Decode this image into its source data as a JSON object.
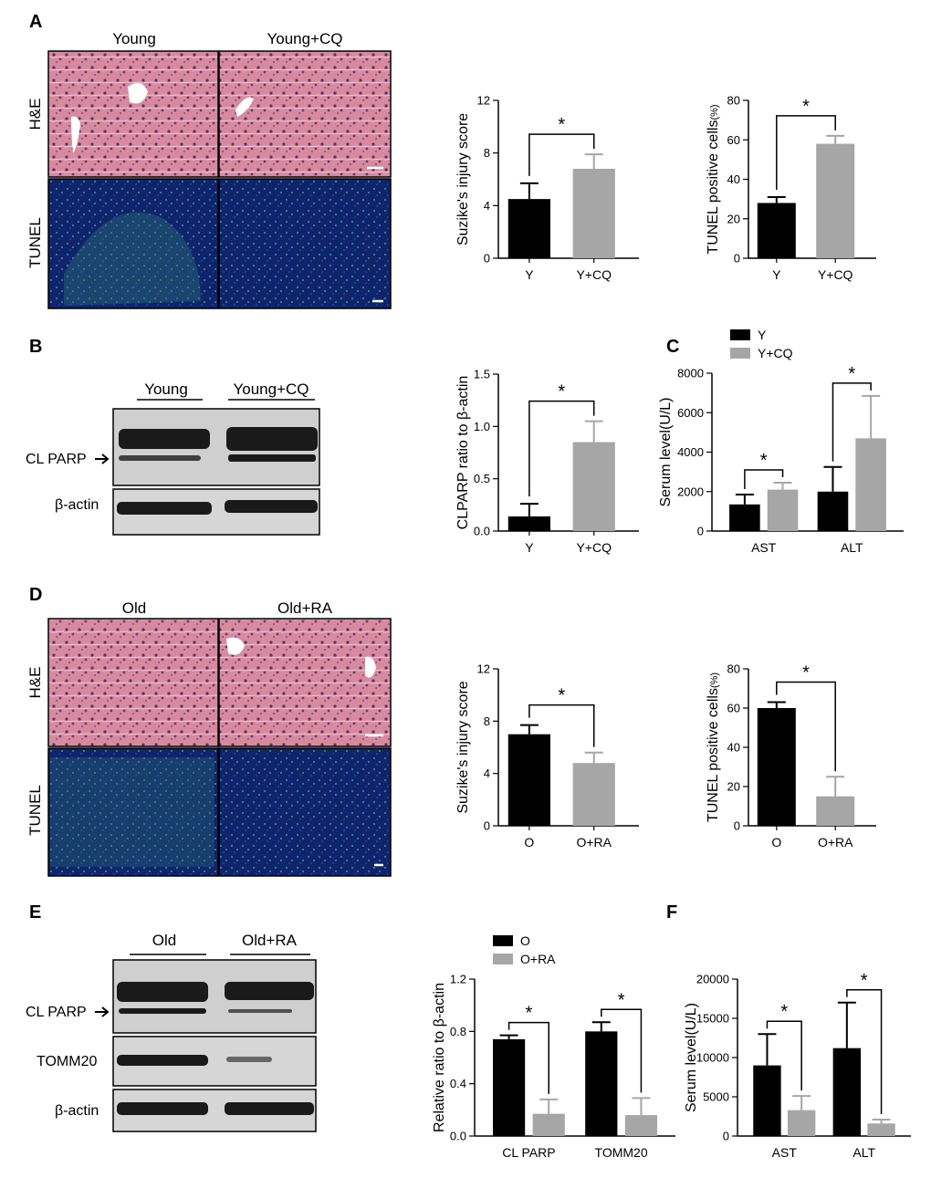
{
  "panels": {
    "A": {
      "letter": "A",
      "columns": [
        "Young",
        "Young+CQ"
      ],
      "rows": [
        "H&E",
        "TUNEL"
      ]
    },
    "B": {
      "letter": "B",
      "groups": [
        "Young",
        "Young+CQ"
      ],
      "bands": [
        "CL PARP",
        "β-actin"
      ]
    },
    "C": {
      "letter": "C"
    },
    "D": {
      "letter": "D",
      "columns": [
        "Old",
        "Old+RA"
      ],
      "rows": [
        "H&E",
        "TUNEL"
      ]
    },
    "E": {
      "letter": "E",
      "groups": [
        "Old",
        "Old+RA"
      ],
      "bands": [
        "CL PARP",
        "TOMM20",
        "β-actin"
      ]
    },
    "F": {
      "letter": "F"
    }
  },
  "colors": {
    "group1": "#000000",
    "group2": "#a6a6a6",
    "he": "#d9899a",
    "tunel": "#0c1f66"
  },
  "chart_data": [
    {
      "id": "A1",
      "type": "bar",
      "categories": [
        "Y",
        "Y+CQ"
      ],
      "values": [
        4.5,
        6.8
      ],
      "errors": [
        1.2,
        1.1
      ],
      "ylabel": "Suzike's injury score",
      "ylim": [
        0,
        12
      ],
      "yticks": [
        0,
        4,
        8,
        12
      ],
      "annotations": [
        "*"
      ]
    },
    {
      "id": "A2",
      "type": "bar",
      "categories": [
        "Y",
        "Y+CQ"
      ],
      "values": [
        28,
        58
      ],
      "errors": [
        3,
        4
      ],
      "ylabel": "TUNEL positive cells",
      "yunit": "(%)",
      "ylim": [
        0,
        80
      ],
      "yticks": [
        0,
        20,
        40,
        60,
        80
      ],
      "annotations": [
        "*"
      ]
    },
    {
      "id": "B1",
      "type": "bar",
      "categories": [
        "Y",
        "Y+CQ"
      ],
      "values": [
        0.14,
        0.85
      ],
      "errors": [
        0.12,
        0.2
      ],
      "ylabel": "CLPARP ratio to β-actin",
      "ylim": [
        0,
        1.5
      ],
      "yticks": [
        "0.0",
        "0.5",
        "1.0",
        "1.5"
      ],
      "annotations": [
        "*"
      ]
    },
    {
      "id": "C1",
      "type": "bar",
      "categories": [
        "AST",
        "ALT"
      ],
      "series": [
        {
          "name": "Y",
          "values": [
            1350,
            2000
          ],
          "errors": [
            500,
            1250
          ]
        },
        {
          "name": "Y+CQ",
          "values": [
            2100,
            4700
          ],
          "errors": [
            350,
            2150
          ]
        }
      ],
      "ylabel": "Serum level(U/L)",
      "ylim": [
        0,
        8000
      ],
      "yticks": [
        0,
        2000,
        4000,
        6000,
        8000
      ],
      "legend": "top-left",
      "annotations": [
        "*",
        "*"
      ]
    },
    {
      "id": "D1",
      "type": "bar",
      "categories": [
        "O",
        "O+RA"
      ],
      "values": [
        7.0,
        4.8
      ],
      "errors": [
        0.7,
        0.8
      ],
      "ylabel": "Suzike's injury score",
      "ylim": [
        0,
        12
      ],
      "yticks": [
        0,
        4,
        8,
        12
      ],
      "annotations": [
        "*"
      ]
    },
    {
      "id": "D2",
      "type": "bar",
      "categories": [
        "O",
        "O+RA"
      ],
      "values": [
        60,
        15
      ],
      "errors": [
        3,
        10
      ],
      "ylabel": "TUNEL positive cells",
      "yunit": "(%)",
      "ylim": [
        0,
        80
      ],
      "yticks": [
        0,
        20,
        40,
        60,
        80
      ],
      "annotations": [
        "*"
      ]
    },
    {
      "id": "E1",
      "type": "bar",
      "categories": [
        "CL PARP",
        "TOMM20"
      ],
      "series": [
        {
          "name": "O",
          "values": [
            0.74,
            0.8
          ],
          "errors": [
            0.03,
            0.07
          ]
        },
        {
          "name": "O+RA",
          "values": [
            0.17,
            0.16
          ],
          "errors": [
            0.11,
            0.13
          ]
        }
      ],
      "ylabel": "Relative ratio to β-actin",
      "ylim": [
        0,
        1.2
      ],
      "yticks": [
        "0.0",
        "0.4",
        "0.8",
        "1.2"
      ],
      "legend": "top-left",
      "annotations": [
        "*",
        "*"
      ]
    },
    {
      "id": "F1",
      "type": "bar",
      "categories": [
        "AST",
        "ALT"
      ],
      "series": [
        {
          "name": "O",
          "values": [
            9000,
            11200
          ],
          "errors": [
            4000,
            5800
          ]
        },
        {
          "name": "O+RA",
          "values": [
            3300,
            1600
          ],
          "errors": [
            1800,
            500
          ]
        }
      ],
      "ylabel": "Serum level(U/L)",
      "ylim": [
        0,
        20000
      ],
      "yticks": [
        0,
        5000,
        10000,
        15000,
        20000
      ],
      "annotations": [
        "*",
        "*"
      ]
    }
  ]
}
